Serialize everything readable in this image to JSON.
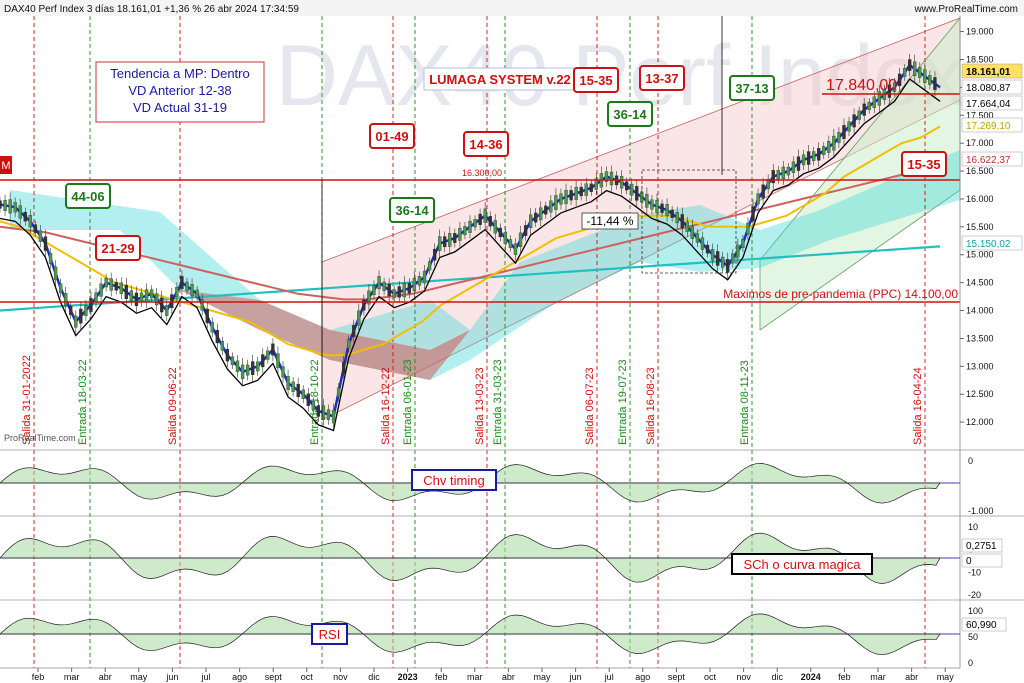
{
  "header": {
    "title": "DAX40 Perf Index 3 días 18.161,01 +1,36 % 26 abr 2024 17:34:59",
    "site": "www.ProRealTime.com",
    "watermark": "DAX40 Perf Index",
    "brand": "ProRealTime.com"
  },
  "info_box": {
    "line1": "Tendencia a MP: Dentro",
    "line2": "VD Anterior 12-38",
    "line3": "VD Actual 31-19"
  },
  "system_label": "LUMAGA SYSTEM v.22",
  "price_callout": "17.840,00",
  "level_16300": "16.300,00",
  "pre_pandemic_label": "Maximos de pre-pandemia (PPC) 14.100,00",
  "drawdown_label": "-11,44 %",
  "left_m": "M",
  "badges": [
    {
      "text": "15-35",
      "color": "#d01010"
    },
    {
      "text": "13-37",
      "color": "#d01010"
    },
    {
      "text": "01-49",
      "color": "#d01010"
    },
    {
      "text": "14-36",
      "color": "#d01010"
    },
    {
      "text": "15-35",
      "color": "#d01010"
    },
    {
      "text": "21-29",
      "color": "#d01010"
    },
    {
      "text": "44-06",
      "color": "#1a7a1a"
    },
    {
      "text": "36-14",
      "color": "#1a7a1a"
    },
    {
      "text": "36-14",
      "color": "#1a7a1a"
    },
    {
      "text": "37-13",
      "color": "#1a7a1a"
    }
  ],
  "vlines": [
    {
      "label": "Salida 31-01-2022",
      "type": "exit"
    },
    {
      "label": "Entrada 18-03-22",
      "type": "entry"
    },
    {
      "label": "Salida 09-06-22",
      "type": "exit"
    },
    {
      "label": "Entrada 18-10-22",
      "type": "entry"
    },
    {
      "label": "Salida 16-12-22",
      "type": "exit"
    },
    {
      "label": "Entrada 06-01-23",
      "type": "entry"
    },
    {
      "label": "Salida 13-03-23",
      "type": "exit"
    },
    {
      "label": "Entrada 31-03-23",
      "type": "entry"
    },
    {
      "label": "Salida 06-07-23",
      "type": "exit"
    },
    {
      "label": "Entrada 19-07-23",
      "type": "entry"
    },
    {
      "label": "Salida 16-08-23",
      "type": "exit"
    },
    {
      "label": "Entrada 08-11-23",
      "type": "entry"
    },
    {
      "label": "Salida 16-04-24",
      "type": "exit"
    }
  ],
  "price_tags": [
    {
      "text": "18.161,01",
      "bg": "#ffe066",
      "fg": "#000000"
    },
    {
      "text": "18.080,87",
      "bg": "#ffffff",
      "fg": "#000000"
    },
    {
      "text": "17.664,04",
      "bg": "#ffffff",
      "fg": "#000000"
    },
    {
      "text": "17.269,10",
      "bg": "#ffffff",
      "fg": "#c8a000"
    },
    {
      "text": "16.622,37",
      "bg": "#ffffff",
      "fg": "#c03030"
    },
    {
      "text": "15.150,02",
      "bg": "#ffffff",
      "fg": "#10a0a0"
    }
  ],
  "panels": {
    "chv": {
      "label": "Chv timing",
      "ticks": [
        "0",
        "-1.000"
      ]
    },
    "sch": {
      "label": "SCh o curva magica",
      "ticks": [
        "10",
        "0",
        "-10",
        "-20"
      ],
      "tag1": "0,2751",
      "tag2": "0"
    },
    "rsi": {
      "label": "RSI",
      "ticks": [
        "100",
        "50",
        "0"
      ],
      "tag": "60,990"
    }
  },
  "x_axis": {
    "labels": [
      "feb",
      "mar",
      "abr",
      "may",
      "jun",
      "jul",
      "ago",
      "sept",
      "oct",
      "nov",
      "dic",
      "2023",
      "feb",
      "mar",
      "abr",
      "may",
      "jun",
      "jul",
      "ago",
      "sept",
      "oct",
      "nov",
      "dic",
      "2024",
      "feb",
      "mar",
      "abr",
      "may"
    ]
  },
  "chart_data": {
    "type": "candlestick",
    "title": "DAX40 Perf Index 3 días",
    "ylim": [
      11500,
      19100
    ],
    "y_ticks": [
      12000,
      12500,
      13000,
      13500,
      14000,
      14500,
      15000,
      15500,
      16000,
      16500,
      17000,
      17500,
      18000,
      18500,
      19000
    ],
    "y_tick_labels": [
      "12.000",
      "12.500",
      "13.000",
      "13.500",
      "14.000",
      "14.500",
      "15.000",
      "15.500",
      "16.000",
      "16.500",
      "17.000",
      "17.500",
      "18.000",
      "18.500",
      "19.000"
    ],
    "x_range": [
      "2022-01",
      "2024-05"
    ],
    "series": [
      {
        "name": "close",
        "values": [
          15900,
          15850,
          15600,
          15200,
          14400,
          13800,
          14100,
          14500,
          14400,
          14200,
          14300,
          14000,
          14500,
          14300,
          13700,
          13200,
          12900,
          13000,
          13300,
          12700,
          12500,
          12200,
          12100,
          13400,
          14100,
          14500,
          14300,
          14400,
          14600,
          15200,
          15300,
          15500,
          15700,
          15400,
          15100,
          15600,
          15800,
          16000,
          16100,
          16200,
          16400,
          16300,
          16100,
          15900,
          15800,
          15600,
          15300,
          15000,
          14800,
          15200,
          16000,
          16400,
          16500,
          16700,
          16800,
          17000,
          17300,
          17600,
          17800,
          18000,
          18400,
          18200,
          18000
        ]
      },
      {
        "name": "sma_yellow",
        "values": [
          15600,
          15500,
          15300,
          15100,
          14900,
          14700,
          14500,
          14400,
          14300,
          14200,
          14100,
          14000,
          13900,
          13800,
          13600,
          13400,
          13300,
          13200,
          13200,
          13300,
          13400,
          13600,
          13800,
          14100,
          14300,
          14500,
          14700,
          14900,
          15100,
          15300,
          15400,
          15500,
          15600,
          15700,
          15700,
          15700,
          15600,
          15500,
          15500,
          15500,
          15600,
          15700,
          15900,
          16100,
          16400,
          16600,
          16800,
          17000,
          17100,
          17300
        ]
      },
      {
        "name": "sma_red",
        "values": [
          15500,
          15450,
          15400,
          15300,
          15200,
          15100,
          15000,
          14900,
          14800,
          14700,
          14600,
          14500,
          14400,
          14300,
          14250,
          14200,
          14200,
          14250,
          14300,
          14400,
          14500,
          14600,
          14700,
          14800,
          14900,
          15000,
          15100,
          15200,
          15300,
          15400,
          15500,
          15600,
          15700,
          15800,
          15900,
          16000,
          16100,
          16200,
          16300,
          16400,
          16500,
          16600
        ]
      },
      {
        "name": "cyan",
        "values": [
          14000,
          14050,
          14100,
          14150,
          14200,
          14250,
          14300,
          14350,
          14400,
          14450,
          14500,
          14550,
          14600,
          14650,
          14700,
          14750,
          14800,
          14850,
          14900,
          14950,
          15000,
          15050,
          15100,
          15150
        ]
      }
    ],
    "levels": [
      16300,
      14100
    ],
    "indicators": [
      "Chv timing",
      "SCh o curva magica",
      "RSI"
    ]
  }
}
